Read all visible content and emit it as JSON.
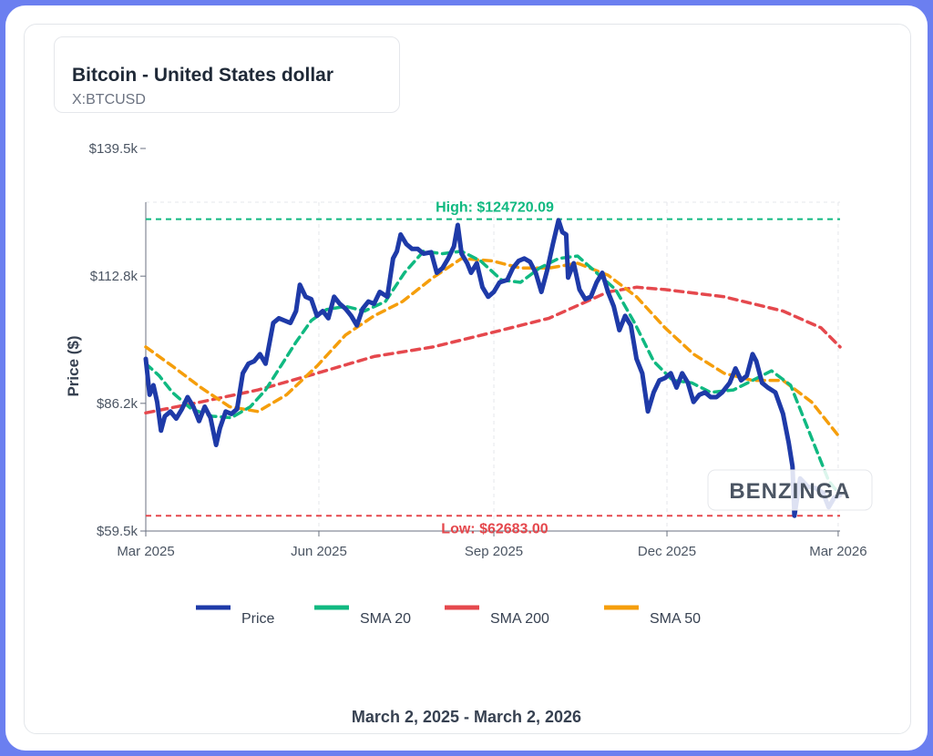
{
  "header": {
    "title": "Bitcoin - United States dollar",
    "symbol": "X:BTCUSD"
  },
  "footer": {
    "date_range": "March 2, 2025 - March 2, 2026"
  },
  "watermark": {
    "text": "BENZINGA"
  },
  "colors": {
    "price": "#1e3aa8",
    "sma20": "#10b981",
    "sma200": "#e5484d",
    "sma50": "#f59e0b",
    "high": "#10b981",
    "low": "#e5484d"
  },
  "chart_data": {
    "type": "line",
    "ylabel": "Price ($)",
    "y_ticks": [
      {
        "value": 59500,
        "label": "$59.5k"
      },
      {
        "value": 86200,
        "label": "$86.2k"
      },
      {
        "value": 112800,
        "label": "$112.8k"
      },
      {
        "value": 139500,
        "label": "$139.5k"
      }
    ],
    "x_ticks": [
      {
        "date": "2025-03-02",
        "label": "Mar 2025"
      },
      {
        "date": "2025-06-01",
        "label": "Jun 2025"
      },
      {
        "date": "2025-09-01",
        "label": "Sep 2025"
      },
      {
        "date": "2025-12-01",
        "label": "Dec 2025"
      },
      {
        "date": "2026-03-01",
        "label": "Mar 2026"
      }
    ],
    "xlim": [
      "2025-03-02",
      "2026-03-02"
    ],
    "ylim": [
      59500,
      139500
    ],
    "grid": true,
    "legend_position": "bottom",
    "annotations": {
      "high": {
        "value": 124720.09,
        "label": "High: $124720.09"
      },
      "low": {
        "value": 62683.0,
        "label": "Low: $62683.00"
      }
    },
    "series": [
      {
        "name": "Price",
        "points": [
          [
            "2025-03-02",
            95500
          ],
          [
            "2025-03-04",
            88000
          ],
          [
            "2025-03-06",
            90000
          ],
          [
            "2025-03-08",
            86500
          ],
          [
            "2025-03-10",
            80500
          ],
          [
            "2025-03-12",
            83500
          ],
          [
            "2025-03-15",
            84500
          ],
          [
            "2025-03-18",
            83000
          ],
          [
            "2025-03-21",
            85000
          ],
          [
            "2025-03-24",
            87500
          ],
          [
            "2025-03-27",
            85500
          ],
          [
            "2025-03-30",
            82500
          ],
          [
            "2025-04-02",
            85500
          ],
          [
            "2025-04-05",
            83200
          ],
          [
            "2025-04-08",
            77500
          ],
          [
            "2025-04-10",
            81000
          ],
          [
            "2025-04-13",
            84500
          ],
          [
            "2025-04-16",
            84000
          ],
          [
            "2025-04-19",
            85000
          ],
          [
            "2025-04-22",
            92500
          ],
          [
            "2025-04-25",
            94500
          ],
          [
            "2025-04-28",
            95000
          ],
          [
            "2025-05-01",
            96500
          ],
          [
            "2025-05-04",
            94500
          ],
          [
            "2025-05-08",
            103000
          ],
          [
            "2025-05-11",
            104000
          ],
          [
            "2025-05-14",
            103500
          ],
          [
            "2025-05-17",
            103000
          ],
          [
            "2025-05-20",
            105500
          ],
          [
            "2025-05-22",
            111000
          ],
          [
            "2025-05-25",
            108500
          ],
          [
            "2025-05-28",
            108000
          ],
          [
            "2025-05-31",
            104500
          ],
          [
            "2025-06-03",
            105500
          ],
          [
            "2025-06-06",
            104000
          ],
          [
            "2025-06-09",
            108500
          ],
          [
            "2025-06-12",
            107000
          ],
          [
            "2025-06-15",
            106000
          ],
          [
            "2025-06-18",
            104500
          ],
          [
            "2025-06-21",
            102500
          ],
          [
            "2025-06-24",
            106000
          ],
          [
            "2025-06-27",
            107500
          ],
          [
            "2025-06-30",
            107000
          ],
          [
            "2025-07-03",
            109500
          ],
          [
            "2025-07-07",
            108500
          ],
          [
            "2025-07-10",
            116500
          ],
          [
            "2025-07-12",
            118000
          ],
          [
            "2025-07-14",
            121500
          ],
          [
            "2025-07-17",
            119500
          ],
          [
            "2025-07-20",
            118500
          ],
          [
            "2025-07-23",
            118500
          ],
          [
            "2025-07-26",
            117500
          ],
          [
            "2025-07-30",
            117800
          ],
          [
            "2025-08-02",
            113500
          ],
          [
            "2025-08-05",
            114500
          ],
          [
            "2025-08-08",
            116500
          ],
          [
            "2025-08-11",
            119000
          ],
          [
            "2025-08-13",
            123500
          ],
          [
            "2025-08-15",
            117500
          ],
          [
            "2025-08-18",
            115500
          ],
          [
            "2025-08-20",
            113500
          ],
          [
            "2025-08-23",
            115500
          ],
          [
            "2025-08-26",
            110500
          ],
          [
            "2025-08-29",
            108500
          ],
          [
            "2025-09-01",
            109500
          ],
          [
            "2025-09-04",
            111500
          ],
          [
            "2025-09-08",
            112000
          ],
          [
            "2025-09-11",
            114500
          ],
          [
            "2025-09-14",
            116000
          ],
          [
            "2025-09-17",
            116500
          ],
          [
            "2025-09-20",
            115800
          ],
          [
            "2025-09-23",
            113500
          ],
          [
            "2025-09-26",
            109500
          ],
          [
            "2025-09-29",
            114000
          ],
          [
            "2025-10-02",
            119500
          ],
          [
            "2025-10-05",
            124500
          ],
          [
            "2025-10-07",
            122000
          ],
          [
            "2025-10-09",
            121500
          ],
          [
            "2025-10-10",
            112500
          ],
          [
            "2025-10-13",
            115500
          ],
          [
            "2025-10-16",
            110000
          ],
          [
            "2025-10-19",
            108000
          ],
          [
            "2025-10-22",
            108500
          ],
          [
            "2025-10-25",
            111500
          ],
          [
            "2025-10-28",
            113500
          ],
          [
            "2025-10-31",
            109500
          ],
          [
            "2025-11-03",
            106500
          ],
          [
            "2025-11-06",
            101500
          ],
          [
            "2025-11-09",
            104500
          ],
          [
            "2025-11-12",
            102500
          ],
          [
            "2025-11-15",
            95500
          ],
          [
            "2025-11-18",
            92500
          ],
          [
            "2025-11-21",
            84500
          ],
          [
            "2025-11-24",
            88500
          ],
          [
            "2025-11-27",
            91000
          ],
          [
            "2025-11-30",
            91500
          ],
          [
            "2025-12-03",
            92500
          ],
          [
            "2025-12-06",
            89500
          ],
          [
            "2025-12-09",
            92500
          ],
          [
            "2025-12-12",
            90500
          ],
          [
            "2025-12-15",
            86500
          ],
          [
            "2025-12-18",
            88000
          ],
          [
            "2025-12-21",
            88500
          ],
          [
            "2025-12-24",
            87500
          ],
          [
            "2025-12-27",
            87500
          ],
          [
            "2025-12-30",
            88500
          ],
          [
            "2026-01-03",
            90500
          ],
          [
            "2026-01-06",
            93500
          ],
          [
            "2026-01-09",
            91000
          ],
          [
            "2026-01-12",
            92000
          ],
          [
            "2026-01-15",
            96500
          ],
          [
            "2026-01-17",
            95000
          ],
          [
            "2026-01-20",
            90500
          ],
          [
            "2026-01-23",
            89500
          ],
          [
            "2026-01-27",
            88500
          ],
          [
            "2026-01-31",
            84000
          ],
          [
            "2026-02-03",
            78000
          ],
          [
            "2026-02-05",
            73000
          ],
          [
            "2026-02-06",
            62700
          ],
          [
            "2026-02-09",
            70500
          ],
          [
            "2026-02-13",
            68800
          ],
          [
            "2026-02-17",
            68500
          ],
          [
            "2026-02-21",
            67500
          ],
          [
            "2026-02-24",
            64500
          ],
          [
            "2026-02-27",
            66500
          ],
          [
            "2026-03-02",
            67000
          ]
        ]
      },
      {
        "name": "SMA 20",
        "points": [
          [
            "2025-03-02",
            94500
          ],
          [
            "2025-03-09",
            92000
          ],
          [
            "2025-03-16",
            88500
          ],
          [
            "2025-03-26",
            85000
          ],
          [
            "2025-04-06",
            83500
          ],
          [
            "2025-04-16",
            83200
          ],
          [
            "2025-04-26",
            85500
          ],
          [
            "2025-05-04",
            89000
          ],
          [
            "2025-05-12",
            94000
          ],
          [
            "2025-05-20",
            99000
          ],
          [
            "2025-05-28",
            103500
          ],
          [
            "2025-06-05",
            105800
          ],
          [
            "2025-06-15",
            106500
          ],
          [
            "2025-06-25",
            105500
          ],
          [
            "2025-07-06",
            107500
          ],
          [
            "2025-07-16",
            113500
          ],
          [
            "2025-07-26",
            118000
          ],
          [
            "2025-08-05",
            117500
          ],
          [
            "2025-08-15",
            118000
          ],
          [
            "2025-08-25",
            116000
          ],
          [
            "2025-09-05",
            112000
          ],
          [
            "2025-09-15",
            111500
          ],
          [
            "2025-09-25",
            114500
          ],
          [
            "2025-10-05",
            116500
          ],
          [
            "2025-10-15",
            117000
          ],
          [
            "2025-10-25",
            113500
          ],
          [
            "2025-11-04",
            110000
          ],
          [
            "2025-11-14",
            103000
          ],
          [
            "2025-11-24",
            95000
          ],
          [
            "2025-12-04",
            91000
          ],
          [
            "2025-12-14",
            90500
          ],
          [
            "2025-12-24",
            88500
          ],
          [
            "2026-01-05",
            89000
          ],
          [
            "2026-01-15",
            91000
          ],
          [
            "2026-01-25",
            93000
          ],
          [
            "2026-02-04",
            90000
          ],
          [
            "2026-02-14",
            80000
          ],
          [
            "2026-02-24",
            70000
          ],
          [
            "2026-03-02",
            67000
          ]
        ]
      },
      {
        "name": "SMA 200",
        "points": [
          [
            "2025-03-02",
            84200
          ],
          [
            "2025-03-31",
            86500
          ],
          [
            "2025-04-30",
            89000
          ],
          [
            "2025-05-31",
            92500
          ],
          [
            "2025-06-30",
            96000
          ],
          [
            "2025-07-31",
            98000
          ],
          [
            "2025-08-31",
            101000
          ],
          [
            "2025-09-30",
            104000
          ],
          [
            "2025-10-31",
            109500
          ],
          [
            "2025-11-15",
            110500
          ],
          [
            "2025-11-30",
            110000
          ],
          [
            "2025-12-31",
            108500
          ],
          [
            "2026-01-31",
            105500
          ],
          [
            "2026-02-20",
            102000
          ],
          [
            "2026-03-02",
            98000
          ]
        ]
      },
      {
        "name": "SMA 50",
        "points": [
          [
            "2025-03-02",
            98000
          ],
          [
            "2025-03-16",
            94000
          ],
          [
            "2025-03-31",
            89500
          ],
          [
            "2025-04-15",
            85500
          ],
          [
            "2025-04-30",
            84500
          ],
          [
            "2025-05-15",
            88000
          ],
          [
            "2025-05-31",
            94000
          ],
          [
            "2025-06-15",
            100500
          ],
          [
            "2025-06-30",
            104500
          ],
          [
            "2025-07-15",
            107500
          ],
          [
            "2025-07-31",
            112500
          ],
          [
            "2025-08-15",
            116500
          ],
          [
            "2025-08-31",
            116000
          ],
          [
            "2025-09-15",
            114500
          ],
          [
            "2025-09-30",
            114500
          ],
          [
            "2025-10-15",
            115500
          ],
          [
            "2025-10-31",
            113000
          ],
          [
            "2025-11-15",
            108500
          ],
          [
            "2025-11-30",
            102000
          ],
          [
            "2025-12-15",
            96500
          ],
          [
            "2025-12-31",
            92500
          ],
          [
            "2026-01-15",
            91000
          ],
          [
            "2026-01-31",
            91000
          ],
          [
            "2026-02-15",
            86500
          ],
          [
            "2026-03-02",
            79000
          ]
        ]
      }
    ]
  }
}
